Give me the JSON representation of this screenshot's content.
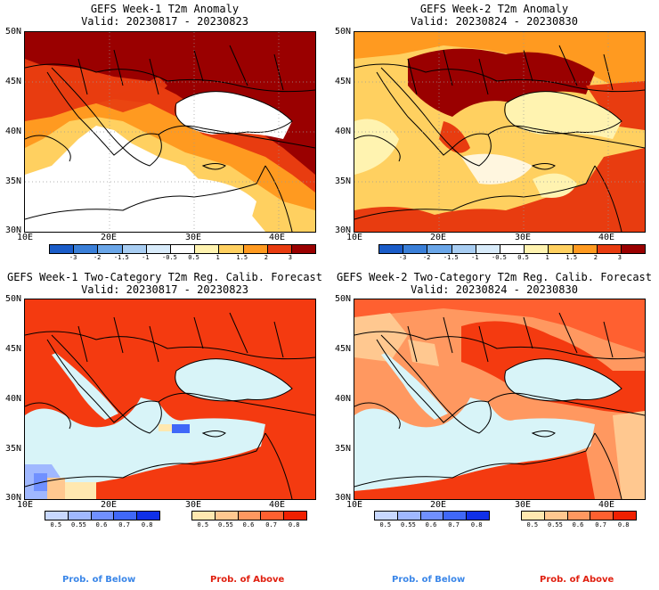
{
  "panels": [
    {
      "title": "GEFS Week-1 T2m Anomaly",
      "valid": "Valid: 20230817 - 20230823"
    },
    {
      "title": "GEFS Week-2 T2m Anomaly",
      "valid": "Valid: 20230824 - 20230830"
    },
    {
      "title": "GEFS Week-1 Two-Category T2m Reg. Calib. Forecast",
      "valid": "Valid: 20230817 - 20230823"
    },
    {
      "title": "GEFS Week-2 Two-Category T2m Reg. Calib. Forecast",
      "valid": "Valid: 20230824 - 20230830"
    }
  ],
  "axes": {
    "lat": [
      "50N",
      "45N",
      "40N",
      "35N",
      "30N"
    ],
    "lon": [
      "10E",
      "20E",
      "30E",
      "40E"
    ]
  },
  "anomaly_colorbar": {
    "labels": [
      "-3",
      "-2",
      "-1.5",
      "-1",
      "-0.5",
      "0.5",
      "1",
      "1.5",
      "2",
      "3"
    ],
    "colors": [
      "#1a5cc8",
      "#3a7fd8",
      "#6aa6e8",
      "#a8cdf2",
      "#d8ebfa",
      "#ffffff",
      "#fff3b0",
      "#ffd060",
      "#ff9a20",
      "#e83c10",
      "#9a0000"
    ]
  },
  "below_colorbar": {
    "labels": [
      "0.5",
      "0.55",
      "0.6",
      "0.7",
      "0.8"
    ],
    "colors": [
      "#c8d8ff",
      "#a0b8ff",
      "#7090ff",
      "#4068f8",
      "#1030e8"
    ]
  },
  "above_colorbar": {
    "labels": [
      "0.5",
      "0.55",
      "0.6",
      "0.7",
      "0.8"
    ],
    "colors": [
      "#ffe8b0",
      "#ffc890",
      "#ff9860",
      "#ff6030",
      "#f02000"
    ]
  },
  "legend": {
    "below": "Prob. of Below",
    "above": "Prob. of Above"
  },
  "colors": {
    "sea": "#d8f4f8",
    "above_bg": "#f43a10"
  }
}
